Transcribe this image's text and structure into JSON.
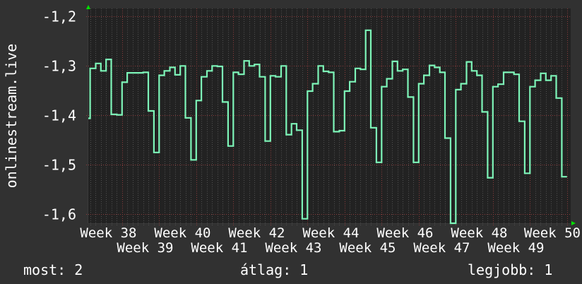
{
  "chart_data": {
    "type": "line",
    "step": true,
    "ylabel": "onlinestream.live",
    "xlabel": "",
    "ylim": [
      -1.618,
      -1.184
    ],
    "xlim": [
      37.09,
      50.1
    ],
    "y_ticks": [
      -1.2,
      -1.3,
      -1.4,
      -1.5,
      -1.6
    ],
    "y_tick_labels": [
      "-1,2",
      "-1,3",
      "-1,4",
      "-1,5",
      "-1,6"
    ],
    "x_ticks": [
      38,
      39,
      40,
      41,
      42,
      43,
      44,
      45,
      46,
      47,
      48,
      49,
      50
    ],
    "x_tick_labels": [
      "Week 38",
      "Week 39",
      "Week 40",
      "Week 41",
      "Week 42",
      "Week 43",
      "Week 44",
      "Week 45",
      "Week 46",
      "Week 47",
      "Week 48",
      "Week 49",
      "Week 50"
    ],
    "grid": true,
    "x_end": 50.0,
    "x": [
      37.0,
      37.14,
      37.29,
      37.43,
      37.57,
      37.71,
      37.86,
      38.0,
      38.14,
      38.29,
      38.43,
      38.57,
      38.71,
      38.86,
      39.0,
      39.14,
      39.29,
      39.43,
      39.57,
      39.71,
      39.86,
      40.0,
      40.14,
      40.29,
      40.43,
      40.57,
      40.71,
      40.86,
      41.0,
      41.14,
      41.29,
      41.43,
      41.57,
      41.71,
      41.86,
      42.0,
      42.14,
      42.29,
      42.43,
      42.57,
      42.71,
      42.86,
      43.0,
      43.14,
      43.29,
      43.43,
      43.57,
      43.71,
      43.86,
      44.0,
      44.14,
      44.29,
      44.43,
      44.57,
      44.71,
      44.86,
      45.0,
      45.14,
      45.29,
      45.43,
      45.57,
      45.71,
      45.86,
      46.0,
      46.14,
      46.29,
      46.43,
      46.57,
      46.71,
      46.86,
      47.0,
      47.14,
      47.29,
      47.43,
      47.57,
      47.71,
      47.86,
      48.0,
      48.14,
      48.29,
      48.43,
      48.57,
      48.71,
      48.86,
      49.0,
      49.14,
      49.29,
      49.43,
      49.57,
      49.71,
      49.86
    ],
    "values": [
      -1.406,
      -1.305,
      -1.295,
      -1.31,
      -1.287,
      -1.398,
      -1.399,
      -1.333,
      -1.314,
      -1.314,
      -1.314,
      -1.313,
      -1.391,
      -1.475,
      -1.319,
      -1.31,
      -1.303,
      -1.318,
      -1.3,
      -1.405,
      -1.49,
      -1.37,
      -1.322,
      -1.31,
      -1.3,
      -1.301,
      -1.373,
      -1.462,
      -1.313,
      -1.317,
      -1.29,
      -1.3,
      -1.297,
      -1.322,
      -1.452,
      -1.32,
      -1.322,
      -1.3,
      -1.439,
      -1.417,
      -1.43,
      -1.609,
      -1.351,
      -1.336,
      -1.3,
      -1.311,
      -1.313,
      -1.433,
      -1.431,
      -1.351,
      -1.332,
      -1.305,
      -1.307,
      -1.228,
      -1.425,
      -1.495,
      -1.342,
      -1.326,
      -1.291,
      -1.31,
      -1.307,
      -1.363,
      -1.495,
      -1.336,
      -1.319,
      -1.299,
      -1.303,
      -1.313,
      -1.446,
      -1.62,
      -1.348,
      -1.336,
      -1.292,
      -1.31,
      -1.319,
      -1.393,
      -1.526,
      -1.342,
      -1.337,
      -1.313,
      -1.313,
      -1.317,
      -1.412,
      -1.517,
      -1.342,
      -1.329,
      -1.315,
      -1.329,
      -1.32,
      -1.365,
      -1.524
    ],
    "colors": {
      "background": "#313131",
      "plot_background": "#222222",
      "line": "#7df5b8",
      "major_grid": "#8a3c3c",
      "minor_grid": "#505050",
      "axis_arrow": "#00e000"
    }
  },
  "legend": {
    "current": "most: 2",
    "average": "átlag: 1",
    "max": "legjobb: 1"
  }
}
